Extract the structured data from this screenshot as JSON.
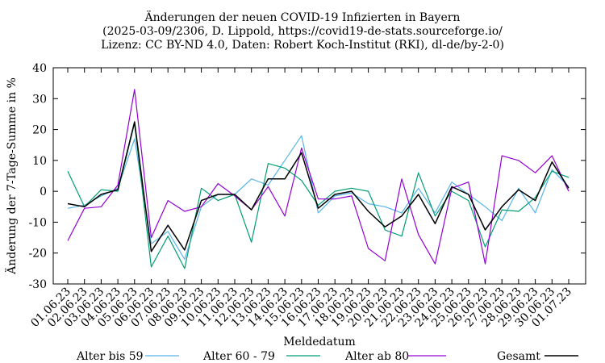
{
  "chart_data": {
    "type": "line",
    "title_lines": [
      "Änderungen der neuen COVID-19 Infizierten in Bayern",
      "(2025-03-09/2306, D. Lippold, https://covid19-de-stats.sourceforge.io/",
      "Lizenz: CC BY-ND 4.0, Daten: Robert Koch-Institut (RKI), dl-de/by-2-0)"
    ],
    "xlabel": "Meldedatum",
    "ylabel": "Änderung der 7-Tage-Summe in %",
    "ylim": [
      -30,
      40
    ],
    "yticks": [
      "-30",
      "-20",
      "-10",
      "0",
      "10",
      "20",
      "30",
      "40"
    ],
    "grid": false,
    "legend_position": "bottom",
    "categories": [
      "01.06.23",
      "02.06.23",
      "03.06.23",
      "04.06.23",
      "05.06.23",
      "06.06.23",
      "07.06.23",
      "08.06.23",
      "09.06.23",
      "10.06.23",
      "11.06.23",
      "12.06.23",
      "13.06.23",
      "14.06.23",
      "15.06.23",
      "16.06.23",
      "17.06.23",
      "18.06.23",
      "19.06.23",
      "20.06.23",
      "21.06.23",
      "22.06.23",
      "23.06.23",
      "24.06.23",
      "25.06.23",
      "26.06.23",
      "27.06.23",
      "28.06.23",
      "29.06.23",
      "30.06.23",
      "01.07.23"
    ],
    "series": [
      {
        "name": "Alter bis 59",
        "color": "#56b4e9",
        "values": [
          -5.5,
          -4.5,
          -1.5,
          1.0,
          17.0,
          -17.0,
          -13.0,
          -22.0,
          -5.0,
          -1.0,
          -1.0,
          4.0,
          2.0,
          10.0,
          18.0,
          -7.0,
          -1.5,
          -0.5,
          -4.0,
          -5.0,
          -7.0,
          1.0,
          -7.0,
          3.0,
          -1.0,
          -5.0,
          -9.5,
          1.0,
          -7.0,
          7.0,
          1.5
        ]
      },
      {
        "name": "Alter 60 - 79",
        "color": "#009e73",
        "values": [
          6.5,
          -5.0,
          0.5,
          0.0,
          22.0,
          -24.5,
          -14.5,
          -25.0,
          1.0,
          -3.0,
          -1.0,
          -16.5,
          9.0,
          7.5,
          3.5,
          -4.5,
          0.0,
          1.0,
          0.0,
          -12.5,
          -14.5,
          6.0,
          -8.0,
          0.0,
          -3.0,
          -18.0,
          -6.0,
          -6.5,
          -2.0,
          6.5,
          4.5
        ]
      },
      {
        "name": "Alter ab 80",
        "color": "#9400d3",
        "values": [
          -16.0,
          -5.5,
          -5.0,
          2.0,
          33.0,
          -15.0,
          -3.0,
          -6.5,
          -5.0,
          2.5,
          -1.5,
          -6.0,
          1.5,
          -8.0,
          14.0,
          -2.5,
          -2.5,
          -1.5,
          -18.5,
          -22.5,
          4.0,
          -14.0,
          -23.5,
          1.0,
          3.0,
          -23.5,
          11.5,
          10.0,
          6.0,
          11.5,
          0.0
        ]
      },
      {
        "name": "Gesamt",
        "color": "#000000",
        "values": [
          -4.0,
          -5.0,
          -1.0,
          0.5,
          22.5,
          -19.5,
          -11.0,
          -19.0,
          -3.0,
          -1.0,
          -1.0,
          -6.0,
          4.0,
          4.0,
          12.5,
          -5.5,
          -1.0,
          0.0,
          -6.5,
          -11.5,
          -8.0,
          -1.0,
          -10.5,
          1.5,
          -1.0,
          -12.5,
          -5.0,
          0.5,
          -3.0,
          9.5,
          1.0
        ]
      }
    ]
  }
}
